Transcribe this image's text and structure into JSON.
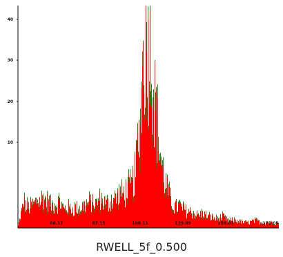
{
  "caption": "RWELL_5f_0.500",
  "colors": {
    "fill": "#ff0000",
    "outline": "#1a8a1a",
    "axis": "#000000"
  },
  "chart_data": {
    "type": "area",
    "x_tick_labels": [
      "66.17",
      "87.15",
      "108.11",
      "129.09",
      "150.07",
      "171.05"
    ],
    "y_tick_labels": [
      "10",
      "20",
      "30",
      "40"
    ],
    "xlim": [
      45.2,
      176
    ],
    "ylim": [
      0,
      52.5
    ],
    "envelope": {
      "x": [
        45.2,
        48,
        50,
        52,
        55,
        58,
        60,
        62,
        64,
        66,
        68,
        70,
        72,
        74,
        76,
        78,
        80,
        82,
        84,
        86,
        88,
        90,
        92,
        94,
        96,
        98,
        100,
        102,
        104,
        106,
        108,
        110,
        112,
        114,
        116,
        118,
        120,
        122,
        124,
        126,
        128,
        130,
        132,
        134,
        136,
        138,
        140,
        142,
        144,
        146,
        148,
        150,
        152,
        155,
        158,
        161,
        164,
        167,
        170,
        173,
        176
      ],
      "y": [
        0.5,
        7,
        5.5,
        6,
        7.5,
        8,
        7,
        6,
        6.5,
        7,
        5,
        5.5,
        5,
        5.5,
        5,
        6,
        6.5,
        7,
        6,
        7.5,
        7,
        6.5,
        7.5,
        8,
        9,
        9,
        10.5,
        11,
        15,
        27,
        48,
        52,
        46,
        33,
        22,
        14,
        10,
        7,
        5.5,
        6,
        5,
        4.5,
        4.5,
        3.5,
        3.5,
        4,
        3,
        3,
        2.5,
        2.5,
        3,
        2,
        2,
        2,
        1.5,
        1.5,
        2,
        1.5,
        1.5,
        1.5,
        1
      ]
    }
  }
}
